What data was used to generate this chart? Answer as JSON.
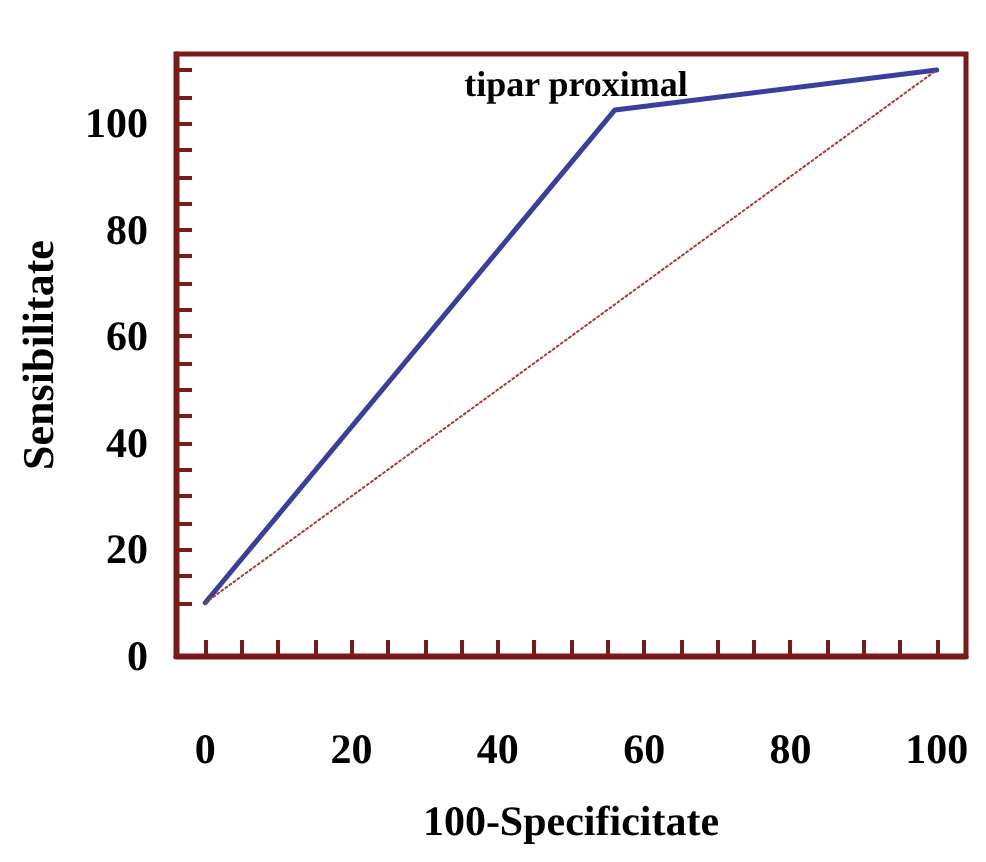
{
  "chart_data": {
    "type": "line",
    "title": "tipar proximal",
    "xlabel": "100-Specificitate",
    "ylabel": "Sensibilitate",
    "xlim": [
      -4,
      104
    ],
    "ylim": [
      0,
      113
    ],
    "xticks": [
      0,
      {
        "value": 5,
        "label": null
      },
      {
        "value": 10,
        "label": null
      },
      {
        "value": 15,
        "label": null
      },
      20,
      {
        "value": 25,
        "label": null
      },
      {
        "value": 30,
        "label": null
      },
      {
        "value": 35,
        "label": null
      },
      40,
      {
        "value": 45,
        "label": null
      },
      {
        "value": 50,
        "label": null
      },
      {
        "value": 55,
        "label": null
      },
      60,
      {
        "value": 65,
        "label": null
      },
      {
        "value": 70,
        "label": null
      },
      {
        "value": 75,
        "label": null
      },
      80,
      {
        "value": 85,
        "label": null
      },
      {
        "value": 90,
        "label": null
      },
      {
        "value": 95,
        "label": null
      },
      100
    ],
    "yticks": [
      0,
      {
        "value": 10,
        "label": null
      },
      {
        "value": 15,
        "label": null
      },
      20,
      {
        "value": 25,
        "label": null
      },
      {
        "value": 30,
        "label": null
      },
      {
        "value": 35,
        "label": null
      },
      40,
      {
        "value": 45,
        "label": null
      },
      {
        "value": 50,
        "label": null
      },
      {
        "value": 55,
        "label": null
      },
      60,
      {
        "value": 65,
        "label": null
      },
      {
        "value": 70,
        "label": null
      },
      {
        "value": 75,
        "label": null
      },
      80,
      {
        "value": 85,
        "label": null
      },
      {
        "value": 90,
        "label": null
      },
      {
        "value": 95,
        "label": null
      },
      100,
      {
        "value": 105,
        "label": null
      },
      {
        "value": 110,
        "label": null
      }
    ],
    "grid": false,
    "marker": "none",
    "series": [
      {
        "color": "#3a3f9e",
        "x": [
          0,
          56,
          100
        ],
        "values": [
          10,
          102.5,
          110
        ],
        "line_style": "solid"
      },
      {
        "color": "#a83a3a",
        "x": [
          0,
          100
        ],
        "values": [
          10,
          110
        ],
        "line_style": "dotted"
      }
    ]
  }
}
